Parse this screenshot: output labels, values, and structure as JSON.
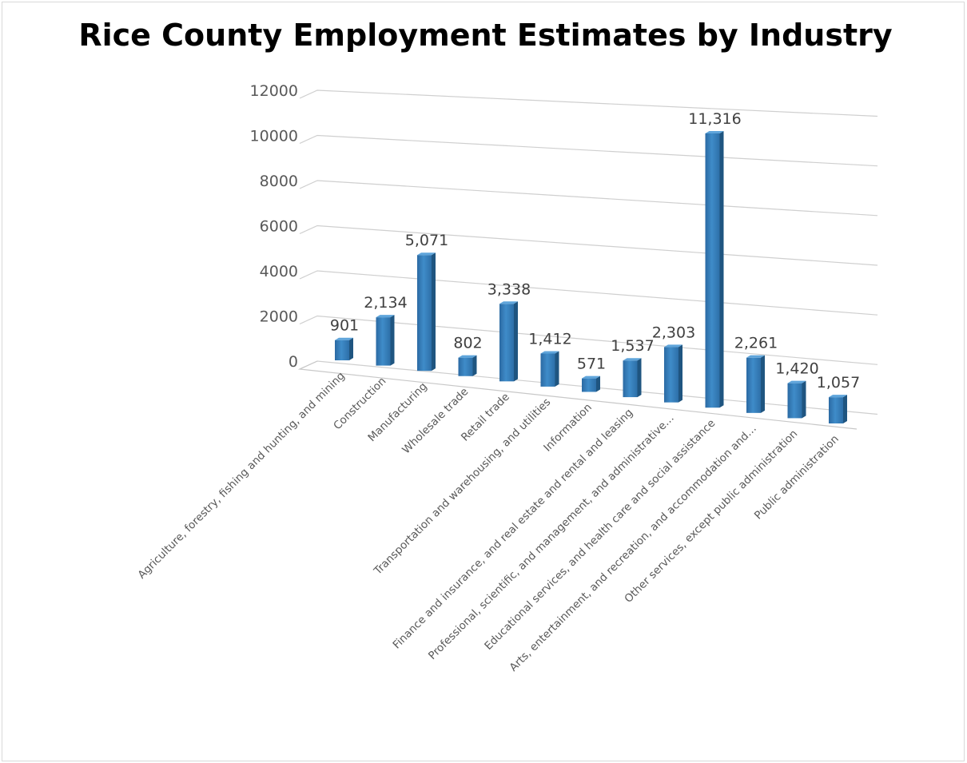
{
  "chart_data": {
    "type": "bar",
    "title": "Rice County Employment Estimates by Industry",
    "categories": [
      "Agriculture, forestry, fishing and hunting, and mining",
      "Construction",
      "Manufacturing",
      "Wholesale trade",
      "Retail trade",
      "Transportation and warehousing, and utilities",
      "Information",
      "Finance and insurance, and real estate and rental and leasing",
      "Professional, scientific, and management, and administrative…",
      "Educational services, and health care and social assistance",
      "Arts, entertainment, and recreation, and accommodation and…",
      "Other services, except public administration",
      "Public administration"
    ],
    "values": [
      901,
      2134,
      5071,
      802,
      3338,
      1412,
      571,
      1537,
      2303,
      11316,
      2261,
      1420,
      1057
    ],
    "data_labels": [
      "901",
      "2,134",
      "5,071",
      "802",
      "3,338",
      "1,412",
      "571",
      "1,537",
      "2,303",
      "11,316",
      "2,261",
      "1,420",
      "1,057"
    ],
    "y_ticks": [
      "0",
      "2000",
      "4000",
      "6000",
      "8000",
      "10000",
      "12000"
    ],
    "ylim": [
      0,
      12000
    ],
    "grid": true,
    "legend": "none",
    "bar_color": "#2e75b6",
    "xlabel": "",
    "ylabel": ""
  }
}
